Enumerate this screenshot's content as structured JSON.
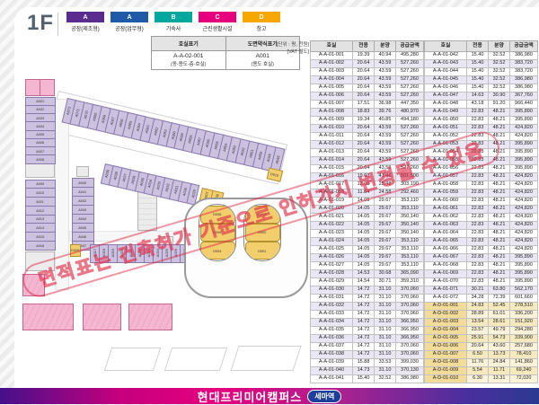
{
  "page": {
    "floor_label": "1F",
    "unit_note_line1": "[단위 : 평, 천원]",
    "unit_note_line2": "[VAT 별도]"
  },
  "legend": {
    "items": [
      {
        "code": "A",
        "label": "공장(제조형)",
        "color": "#5b2c90"
      },
      {
        "code": "A",
        "label": "공장(업무형)",
        "color": "#1e5aa8"
      },
      {
        "code": "B",
        "label": "기숙사",
        "color": "#00a79d"
      },
      {
        "code": "C",
        "label": "근린생활시설",
        "color": "#e6007e"
      },
      {
        "code": "D",
        "label": "창고",
        "color": "#f7a800"
      }
    ]
  },
  "notation": {
    "headers": [
      "호실표기",
      "도면약식표기"
    ],
    "cells": [
      {
        "main": "A-A-02-001",
        "sub": "(동-용도-층-호실)"
      },
      {
        "main": "A001",
        "sub": "(용도 호실)"
      }
    ]
  },
  "table": {
    "headers": [
      "호실",
      "전용",
      "분양",
      "공급금액"
    ],
    "left_rows": [
      [
        "A-A-01-001",
        "19.39",
        "40.94",
        "495,280"
      ],
      [
        "A-A-01-002",
        "20.64",
        "43.59",
        "527,260"
      ],
      [
        "A-A-01-003",
        "20.64",
        "43.59",
        "527,260"
      ],
      [
        "A-A-01-004",
        "20.64",
        "43.59",
        "527,260"
      ],
      [
        "A-A-01-005",
        "20.64",
        "43.59",
        "527,260"
      ],
      [
        "A-A-01-006",
        "20.64",
        "43.59",
        "527,260"
      ],
      [
        "A-A-01-007",
        "17.51",
        "36.98",
        "447,350"
      ],
      [
        "A-A-01-008",
        "18.83",
        "39.76",
        "480,970"
      ],
      [
        "A-A-01-009",
        "19.34",
        "40.85",
        "494,180"
      ],
      [
        "A-A-01-010",
        "20.64",
        "43.59",
        "527,260"
      ],
      [
        "A-A-01-011",
        "20.64",
        "43.59",
        "527,260"
      ],
      [
        "A-A-01-012",
        "20.64",
        "43.59",
        "527,260"
      ],
      [
        "A-A-01-013",
        "20.64",
        "43.59",
        "527,260"
      ],
      [
        "A-A-01-014",
        "20.64",
        "43.59",
        "527,260"
      ],
      [
        "A-A-01-015",
        "20.64",
        "43.59",
        "527,260"
      ],
      [
        "A-A-01-016",
        "19.63",
        "41.46",
        "501,500"
      ],
      [
        "A-A-01-017",
        "12.06",
        "25.48",
        "303,190"
      ],
      [
        "A-A-01-018",
        "11.64",
        "24.58",
        "292,460"
      ],
      [
        "A-A-01-019",
        "14.05",
        "29.67",
        "353,110"
      ],
      [
        "A-A-01-020",
        "14.05",
        "29.67",
        "353,110"
      ],
      [
        "A-A-01-021",
        "14.05",
        "29.67",
        "350,140"
      ],
      [
        "A-A-01-022",
        "14.05",
        "29.67",
        "350,140"
      ],
      [
        "A-A-01-023",
        "14.05",
        "29.67",
        "350,140"
      ],
      [
        "A-A-01-024",
        "14.05",
        "29.67",
        "353,110"
      ],
      [
        "A-A-01-025",
        "14.05",
        "29.67",
        "353,110"
      ],
      [
        "A-A-01-026",
        "14.05",
        "29.67",
        "353,110"
      ],
      [
        "A-A-01-027",
        "14.05",
        "29.67",
        "353,110"
      ],
      [
        "A-A-01-028",
        "14.53",
        "30.68",
        "365,090"
      ],
      [
        "A-A-01-029",
        "14.54",
        "30.71",
        "359,310"
      ],
      [
        "A-A-01-030",
        "14.72",
        "31.10",
        "370,060"
      ],
      [
        "A-A-01-031",
        "14.72",
        "31.10",
        "370,060"
      ],
      [
        "A-A-01-032",
        "14.72",
        "31.10",
        "370,060"
      ],
      [
        "A-A-01-033",
        "14.72",
        "31.10",
        "370,060"
      ],
      [
        "A-A-01-034",
        "14.72",
        "31.10",
        "366,950"
      ],
      [
        "A-A-01-035",
        "14.72",
        "31.10",
        "366,950"
      ],
      [
        "A-A-01-036",
        "14.72",
        "31.10",
        "366,950"
      ],
      [
        "A-A-01-037",
        "14.72",
        "31.10",
        "370,060"
      ],
      [
        "A-A-01-038",
        "14.72",
        "31.10",
        "370,060"
      ],
      [
        "A-A-01-039",
        "15.88",
        "33.53",
        "399,030"
      ],
      [
        "A-A-01-040",
        "14.73",
        "31.10",
        "370,130"
      ],
      [
        "A-A-01-041",
        "15.40",
        "32.52",
        "386,980"
      ]
    ],
    "right_rows": [
      [
        "A-A-01-042",
        "15.40",
        "32.52",
        "386,980"
      ],
      [
        "A-A-01-043",
        "15.40",
        "32.52",
        "383,720"
      ],
      [
        "A-A-01-044",
        "15.40",
        "32.52",
        "383,720"
      ],
      [
        "A-A-01-045",
        "15.40",
        "32.52",
        "386,980"
      ],
      [
        "A-A-01-046",
        "15.40",
        "32.52",
        "386,980"
      ],
      [
        "A-A-01-047",
        "14.63",
        "30.90",
        "367,760"
      ],
      [
        "A-A-01-048",
        "43.18",
        "91.20",
        "966,440"
      ],
      [
        "A-A-01-049",
        "22.83",
        "48.21",
        "395,890"
      ],
      [
        "A-A-01-050",
        "22.83",
        "48.21",
        "395,890"
      ],
      [
        "A-A-01-051",
        "22.83",
        "48.21",
        "424,820"
      ],
      [
        "A-A-01-052",
        "22.83",
        "48.21",
        "424,820"
      ],
      [
        "A-A-01-053",
        "22.83",
        "48.21",
        "395,890"
      ],
      [
        "A-A-01-054",
        "22.83",
        "48.21",
        "395,890"
      ],
      [
        "A-A-01-055",
        "22.83",
        "48.21",
        "395,890"
      ],
      [
        "A-A-01-056",
        "22.83",
        "48.21",
        "395,890"
      ],
      [
        "A-A-01-057",
        "22.83",
        "48.21",
        "424,820"
      ],
      [
        "A-A-01-058",
        "22.83",
        "48.21",
        "424,820"
      ],
      [
        "A-A-01-059",
        "22.83",
        "48.21",
        "424,820"
      ],
      [
        "A-A-01-060",
        "22.83",
        "48.21",
        "424,820"
      ],
      [
        "A-A-01-061",
        "22.83",
        "48.21",
        "424,820"
      ],
      [
        "A-A-01-062",
        "22.83",
        "48.21",
        "424,820"
      ],
      [
        "A-A-01-063",
        "22.83",
        "48.21",
        "424,820"
      ],
      [
        "A-A-01-064",
        "22.83",
        "48.21",
        "424,820"
      ],
      [
        "A-A-01-065",
        "22.83",
        "48.21",
        "424,820"
      ],
      [
        "A-A-01-066",
        "22.83",
        "48.21",
        "424,820"
      ],
      [
        "A-A-01-067",
        "22.83",
        "48.21",
        "395,890"
      ],
      [
        "A-A-01-068",
        "22.83",
        "48.21",
        "395,890"
      ],
      [
        "A-A-01-069",
        "22.83",
        "48.21",
        "395,890"
      ],
      [
        "A-A-01-070",
        "22.83",
        "48.21",
        "395,890"
      ],
      [
        "A-A-01-071",
        "30.21",
        "63.80",
        "562,170"
      ],
      [
        "A-A-01-072",
        "34.28",
        "72.39",
        "601,660"
      ],
      [
        "A-D-01-001",
        "24.83",
        "52.45",
        "278,510"
      ],
      [
        "A-D-01-002",
        "28.89",
        "61.01",
        "336,200"
      ],
      [
        "A-D-01-003",
        "13.54",
        "28.61",
        "151,920"
      ],
      [
        "A-D-01-004",
        "23.57",
        "49.79",
        "294,280"
      ],
      [
        "A-D-01-005",
        "25.91",
        "54.73",
        "339,900"
      ],
      [
        "A-D-01-006",
        "20.64",
        "43.60",
        "257,680"
      ],
      [
        "A-D-01-007",
        "6.50",
        "13.73",
        "78,410"
      ],
      [
        "A-D-01-008",
        "11.76",
        "24.84",
        "141,860"
      ],
      [
        "A-D-01-009",
        "5.54",
        "11.71",
        "69,240"
      ],
      [
        "A-D-01-010",
        "6.30",
        "13.31",
        "72,020"
      ]
    ]
  },
  "plan": {
    "left_strip_a": [
      "A001",
      "A002",
      "A003",
      "A004",
      "A005",
      "A006",
      "A007",
      "A008"
    ],
    "left_strip_b": [
      "A009",
      "A010",
      "A011",
      "A012",
      "A013",
      "A014",
      "A015",
      "A016"
    ],
    "mid_strip": [
      "A040",
      "A041",
      "A042",
      "A043",
      "A044",
      "A045",
      "A046",
      "A047"
    ],
    "bottom_band": [
      "A017",
      "A018",
      "A019",
      "A020",
      "A021",
      "A022",
      "A023",
      "A024",
      "A025",
      "A026",
      "A027",
      "A028"
    ],
    "inner_diagonal": [
      "A039",
      "A038",
      "A037",
      "A036",
      "A035",
      "A034",
      "A033",
      "A032",
      "A031",
      "A030",
      "A029"
    ],
    "top_diagonal": [
      "A072",
      "A071",
      "A070",
      "A069",
      "A068",
      "A067",
      "A066",
      "A065",
      "A064",
      "A063",
      "A062",
      "A061",
      "A060",
      "A059",
      "A058",
      "A057",
      "A056",
      "A055",
      "A054",
      "A053",
      "A052",
      "A051",
      "A050",
      "A049",
      "A048"
    ],
    "core_left": [
      "D006",
      "D005",
      "D004"
    ],
    "core_right": [
      "D003",
      "D002",
      "D001"
    ],
    "d_unit_bottom": [
      "D009"
    ],
    "d_unit_band": [
      "D007",
      "D008"
    ],
    "d_unit_top": [
      "D010"
    ]
  },
  "watermark": {
    "text": "면적표는 건축허가 기준으로 인허가시 변경될 수 있음"
  },
  "footer": {
    "brand": "현대프리미어캠퍼스",
    "station_badge": "세마역"
  }
}
